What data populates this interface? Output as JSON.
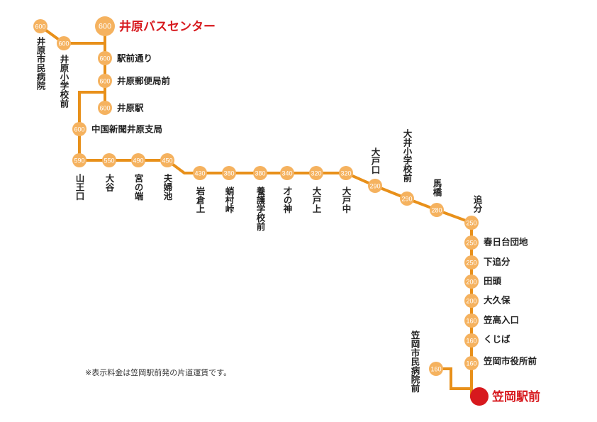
{
  "colors": {
    "line": "#E8901A",
    "stop": "#F5B25F",
    "terminal_text": "#D7191E",
    "terminal_dot": "#D7191E"
  },
  "note": "※表示料金は笠岡駅前発の片道運賃です。",
  "stops": [
    {
      "id": "ibara-shimin-byoin",
      "name": "井原市民病院",
      "fare": "600"
    },
    {
      "id": "ibara-shogakko-mae",
      "name": "井原小学校前",
      "fare": "600"
    },
    {
      "id": "ibara-bus-center",
      "name": "井原バスセンター",
      "fare": "600"
    },
    {
      "id": "ekimae-dori",
      "name": "駅前通り",
      "fare": "600"
    },
    {
      "id": "ibara-yubinkyoku-mae",
      "name": "井原郵便局前",
      "fare": "600"
    },
    {
      "id": "ibara-eki",
      "name": "井原駅",
      "fare": "600"
    },
    {
      "id": "chugoku-shinbun",
      "name": "中国新聞井原支局",
      "fare": "600"
    },
    {
      "id": "yamaguchi",
      "name": "山王口",
      "fare": "590"
    },
    {
      "id": "oya",
      "name": "大谷",
      "fare": "550"
    },
    {
      "id": "miyanohata",
      "name": "宮の端",
      "fare": "490"
    },
    {
      "id": "meotoike",
      "name": "夫婦池",
      "fare": "450"
    },
    {
      "id": "iwakura-kami",
      "name": "岩倉上",
      "fare": "430"
    },
    {
      "id": "sukumura-toge",
      "name": "蛸村峠",
      "fare": "380"
    },
    {
      "id": "yogo-gakko-mae",
      "name": "養護学校前",
      "fare": "380"
    },
    {
      "id": "sainokami",
      "name": "才の神",
      "fare": "340"
    },
    {
      "id": "oto-kami",
      "name": "大戸上",
      "fare": "320"
    },
    {
      "id": "oto-naka",
      "name": "大戸中",
      "fare": "320"
    },
    {
      "id": "oto-guchi",
      "name": "大戸口",
      "fare": "290"
    },
    {
      "id": "oi-shogakko-mae",
      "name": "大井小学校前",
      "fare": "290"
    },
    {
      "id": "umabashi",
      "name": "馬橋",
      "fare": "280"
    },
    {
      "id": "oibun",
      "name": "追分",
      "fare": "250"
    },
    {
      "id": "kasuga-danchi",
      "name": "春日台団地",
      "fare": "250"
    },
    {
      "id": "shimo-oibun",
      "name": "下追分",
      "fare": "250"
    },
    {
      "id": "tagashira",
      "name": "田頭",
      "fare": "200"
    },
    {
      "id": "okubo",
      "name": "大久保",
      "fare": "200"
    },
    {
      "id": "kasataka-iriguchi",
      "name": "笠高入口",
      "fare": "160"
    },
    {
      "id": "kujiba",
      "name": "くじば",
      "fare": "160"
    },
    {
      "id": "kasaoka-shiyakusho-mae",
      "name": "笠岡市役所前",
      "fare": "160"
    },
    {
      "id": "kasaoka-shimin-byoin-mae",
      "name": "笠岡市民病院前",
      "fare": "160"
    },
    {
      "id": "kasaoka-ekimae",
      "name": "笠岡駅前",
      "fare": ""
    }
  ]
}
